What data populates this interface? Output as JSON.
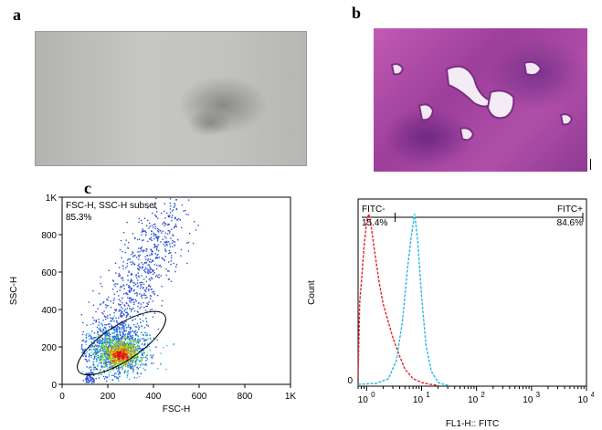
{
  "panels": {
    "a": "a",
    "b": "b",
    "c": "c"
  },
  "chart_data": [
    {
      "type": "scatter",
      "panel": "c-left",
      "xlabel": "FSC-H",
      "ylabel": "SSC-H",
      "xlim": [
        0,
        1000
      ],
      "ylim": [
        0,
        1000
      ],
      "x_ticks": [
        "0",
        "200",
        "400",
        "600",
        "800",
        "1K"
      ],
      "y_ticks": [
        "0",
        "200",
        "400",
        "600",
        "800",
        "1K"
      ],
      "gate_label": "FSC-H, SSC-H subset",
      "gate_percent": "85.3%",
      "gate_ellipse": {
        "center": [
          260,
          220
        ],
        "semi_major": 225,
        "semi_minor": 95,
        "angle_deg": 33
      },
      "density": "dense cluster near (250, 170), sparse tail up to (500, 1000)"
    },
    {
      "type": "line",
      "panel": "c-right",
      "xlabel": "FL1-H:: FITC",
      "ylabel": "Count",
      "x_scale": "log",
      "xlim": [
        0.7,
        10000
      ],
      "x_ticks": [
        "10^0",
        "10^1",
        "10^2",
        "10^3",
        "10^4"
      ],
      "y_ticks": [
        "0"
      ],
      "gate_left_label": "FITC-",
      "gate_left_percent": "15.4%",
      "gate_right_label": "FITC+",
      "gate_right_percent": "84.6%",
      "gate_boundary": 3.3,
      "series": [
        {
          "color": "#e8202a",
          "style": "dashed",
          "x": [
            0.7,
            0.75,
            0.8,
            0.9,
            1.0,
            1.1,
            1.2,
            1.4,
            1.7,
            2.0,
            2.5,
            3.0,
            4.0,
            5.0,
            7.0,
            10.0,
            14.0,
            20.0
          ],
          "y": [
            5,
            45,
            55,
            75,
            88,
            92,
            86,
            72,
            55,
            44,
            34,
            26,
            16,
            9,
            4,
            2,
            1,
            0.5
          ]
        },
        {
          "color": "#22b8e6",
          "style": "dashed",
          "x": [
            0.7,
            1.5,
            2.5,
            3.5,
            4.5,
            5.5,
            6.5,
            7.5,
            8.5,
            10.0,
            12.0,
            15.0,
            20.0,
            25.0,
            30.0
          ],
          "y": [
            1,
            1.5,
            4,
            14,
            35,
            62,
            80,
            92,
            78,
            48,
            22,
            8,
            2,
            1,
            0.5
          ]
        }
      ]
    }
  ]
}
